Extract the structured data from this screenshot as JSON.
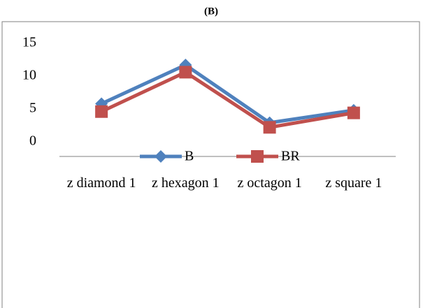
{
  "chart_data": {
    "type": "line",
    "title": "(B)",
    "categories": [
      "z diamond 1",
      "z hexagon 1",
      "z octagon 1",
      "z square 1"
    ],
    "series": [
      {
        "name": "B",
        "color": "#4f81bd",
        "marker": "diamond",
        "values": [
          5.8,
          11.7,
          2.9,
          4.8
        ]
      },
      {
        "name": "BR",
        "color": "#c0504d",
        "marker": "square",
        "values": [
          4.6,
          10.6,
          2.2,
          4.4
        ]
      }
    ],
    "ylim": [
      0,
      15
    ],
    "yticks": [
      0,
      5,
      10,
      15
    ],
    "grid": false,
    "legend": "bottom"
  }
}
